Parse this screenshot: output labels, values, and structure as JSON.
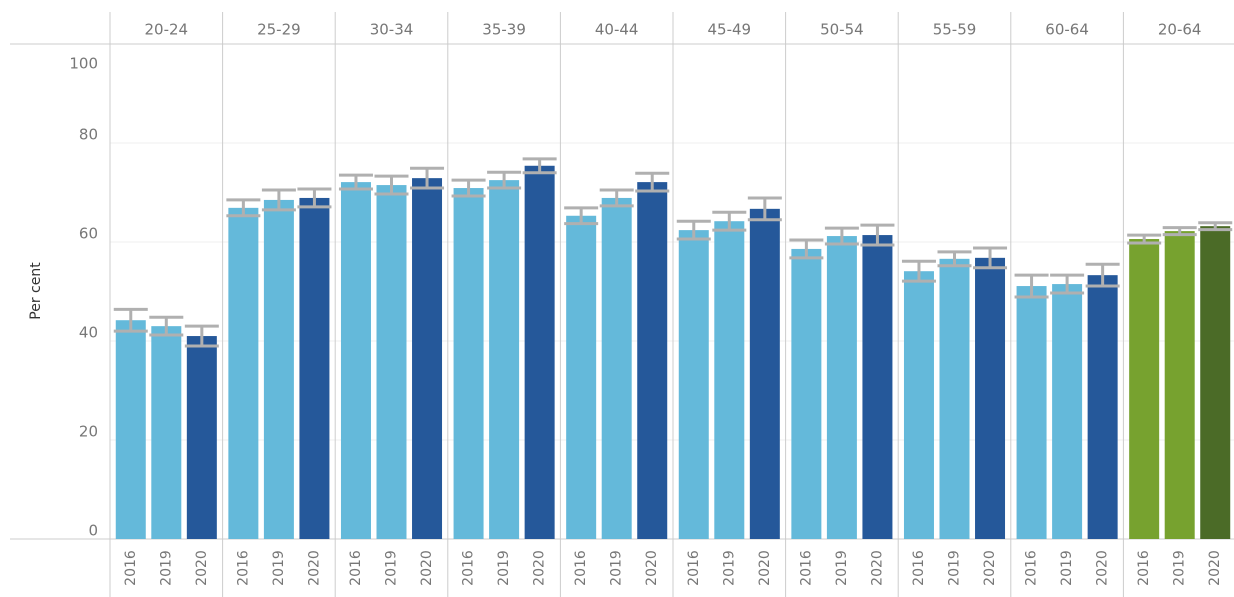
{
  "chart_data": {
    "type": "bar",
    "y_label": "Per cent",
    "ylim": [
      0,
      100
    ],
    "yticks": [
      0,
      20,
      40,
      60,
      80,
      100
    ],
    "grid": true,
    "years": [
      "2016",
      "2019",
      "2020"
    ],
    "panels": [
      {
        "name": "20-24",
        "values": [
          44.2,
          43.0,
          41.0
        ],
        "errors": [
          2.2,
          1.8,
          2.0
        ],
        "colors": [
          "#64b9da",
          "#64b9da",
          "#25589a"
        ]
      },
      {
        "name": "25-29",
        "values": [
          66.9,
          68.5,
          68.9
        ],
        "errors": [
          1.6,
          2.0,
          1.8
        ],
        "colors": [
          "#64b9da",
          "#64b9da",
          "#25589a"
        ]
      },
      {
        "name": "30-34",
        "values": [
          72.1,
          71.5,
          72.9
        ],
        "errors": [
          1.4,
          1.8,
          2.0
        ],
        "colors": [
          "#64b9da",
          "#64b9da",
          "#25589a"
        ]
      },
      {
        "name": "35-39",
        "values": [
          70.9,
          72.5,
          75.4
        ],
        "errors": [
          1.6,
          1.6,
          1.4
        ],
        "colors": [
          "#64b9da",
          "#64b9da",
          "#25589a"
        ]
      },
      {
        "name": "40-44",
        "values": [
          65.3,
          68.9,
          72.1
        ],
        "errors": [
          1.6,
          1.6,
          1.8
        ],
        "colors": [
          "#64b9da",
          "#64b9da",
          "#25589a"
        ]
      },
      {
        "name": "45-49",
        "values": [
          62.4,
          64.2,
          66.7
        ],
        "errors": [
          1.8,
          1.8,
          2.2
        ],
        "colors": [
          "#64b9da",
          "#64b9da",
          "#25589a"
        ]
      },
      {
        "name": "50-54",
        "values": [
          58.6,
          61.2,
          61.4
        ],
        "errors": [
          1.8,
          1.6,
          2.0
        ],
        "colors": [
          "#64b9da",
          "#64b9da",
          "#25589a"
        ]
      },
      {
        "name": "55-59",
        "values": [
          54.1,
          56.6,
          56.8
        ],
        "errors": [
          2.0,
          1.4,
          2.0
        ],
        "colors": [
          "#64b9da",
          "#64b9da",
          "#25589a"
        ]
      },
      {
        "name": "60-64",
        "values": [
          51.1,
          51.5,
          53.3
        ],
        "errors": [
          2.2,
          1.8,
          2.2
        ],
        "colors": [
          "#64b9da",
          "#64b9da",
          "#25589a"
        ]
      },
      {
        "name": "20-64",
        "values": [
          60.6,
          62.2,
          63.2
        ],
        "errors": [
          0.8,
          0.7,
          0.7
        ],
        "colors": [
          "#77a22f",
          "#77a22f",
          "#4b6b27"
        ]
      }
    ]
  }
}
